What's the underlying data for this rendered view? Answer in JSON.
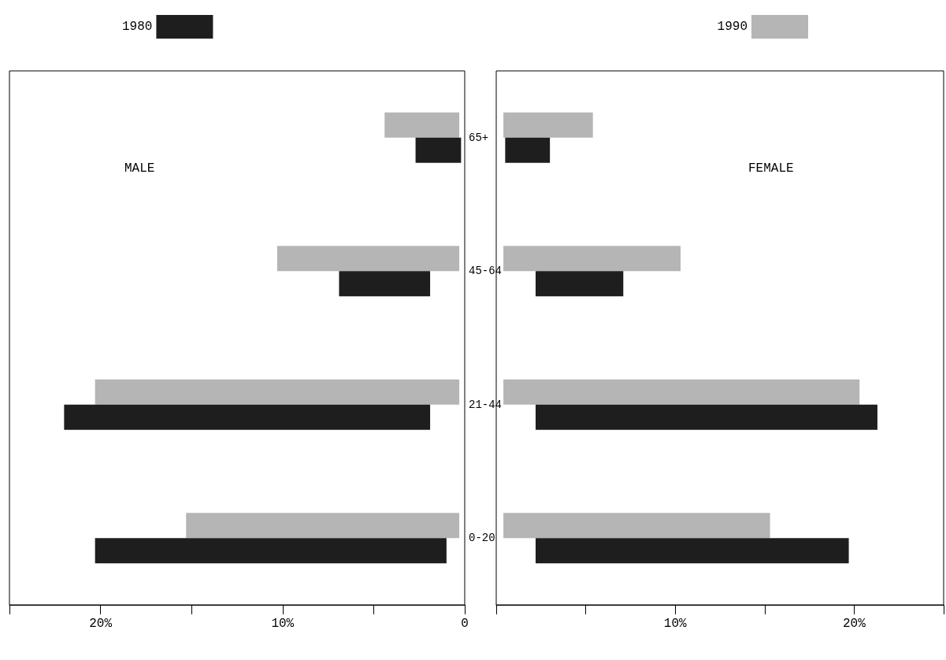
{
  "chart_data": [
    {
      "type": "bar",
      "orientation": "horizontal",
      "categories": [
        "65+",
        "45-64",
        "21-44",
        "0-20"
      ],
      "xlim": [
        25,
        0
      ],
      "xticks": [
        {
          "value": 25,
          "label": null
        },
        {
          "value": 20,
          "label": "20%"
        },
        {
          "value": 15,
          "label": null
        },
        {
          "value": 10,
          "label": "10%"
        },
        {
          "value": 5,
          "label": null
        },
        {
          "value": 0,
          "label": "0"
        }
      ],
      "legend": "top left",
      "grid": false,
      "annotations": [
        "MALE"
      ],
      "series": [
        {
          "color": "#b5b5b5",
          "base": [
            0.3,
            0.3,
            0.3,
            0.3
          ],
          "values": [
            4.1,
            10.0,
            20.0,
            15.0
          ]
        },
        {
          "name": "1980",
          "color": "#1e1e1e",
          "base": [
            0.2,
            1.9,
            1.9,
            1.0
          ],
          "values": [
            2.5,
            5.0,
            20.1,
            19.3
          ]
        }
      ]
    },
    {
      "type": "bar",
      "orientation": "horizontal",
      "categories": [
        null,
        null,
        null,
        null
      ],
      "xlim": [
        0,
        25
      ],
      "xticks": [
        {
          "value": 0,
          "label": null
        },
        {
          "value": 5,
          "label": null
        },
        {
          "value": 10,
          "label": "10%"
        },
        {
          "value": 15,
          "label": null
        },
        {
          "value": 20,
          "label": "20%"
        },
        {
          "value": 25,
          "label": null
        }
      ],
      "legend": "top right",
      "grid": false,
      "annotations": [
        "FEMALE"
      ],
      "series": [
        {
          "name": "1990",
          "color": "#b5b5b5",
          "base": [
            0.4,
            0.4,
            0.4,
            0.4
          ],
          "values": [
            5.0,
            9.9,
            19.9,
            14.9
          ]
        },
        {
          "color": "#1e1e1e",
          "base": [
            0.5,
            2.2,
            2.2,
            2.2
          ],
          "values": [
            2.5,
            4.9,
            19.1,
            17.5
          ]
        }
      ]
    }
  ]
}
